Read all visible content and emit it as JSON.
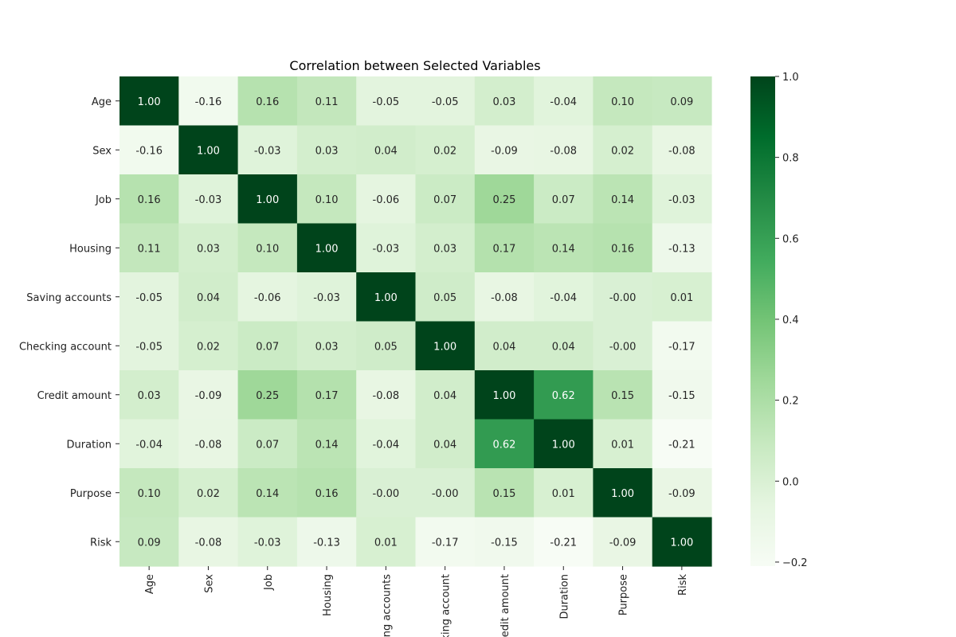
{
  "chart_data": {
    "type": "heatmap",
    "title": "Correlation between Selected Variables",
    "xlabel": "",
    "ylabel": "",
    "rows": [
      "Age",
      "Sex",
      "Job",
      "Housing",
      "Saving accounts",
      "Checking account",
      "Credit amount",
      "Duration",
      "Purpose",
      "Risk"
    ],
    "columns": [
      "Age",
      "Sex",
      "Job",
      "Housing",
      "Saving accounts",
      "Checking account",
      "Credit amount",
      "Duration",
      "Purpose",
      "Risk"
    ],
    "values": [
      [
        1.0,
        -0.16,
        0.16,
        0.11,
        -0.05,
        -0.05,
        0.03,
        -0.04,
        0.1,
        0.09
      ],
      [
        -0.16,
        1.0,
        -0.03,
        0.03,
        0.04,
        0.02,
        -0.09,
        -0.08,
        0.02,
        -0.08
      ],
      [
        0.16,
        -0.03,
        1.0,
        0.1,
        -0.06,
        0.07,
        0.25,
        0.07,
        0.14,
        -0.03
      ],
      [
        0.11,
        0.03,
        0.1,
        1.0,
        -0.03,
        0.03,
        0.17,
        0.14,
        0.16,
        -0.13
      ],
      [
        -0.05,
        0.04,
        -0.06,
        -0.03,
        1.0,
        0.05,
        -0.08,
        -0.04,
        -0.0,
        0.01
      ],
      [
        -0.05,
        0.02,
        0.07,
        0.03,
        0.05,
        1.0,
        0.04,
        0.04,
        -0.0,
        -0.17
      ],
      [
        0.03,
        -0.09,
        0.25,
        0.17,
        -0.08,
        0.04,
        1.0,
        0.62,
        0.15,
        -0.15
      ],
      [
        -0.04,
        -0.08,
        0.07,
        0.14,
        -0.04,
        0.04,
        0.62,
        1.0,
        0.01,
        -0.21
      ],
      [
        0.1,
        0.02,
        0.14,
        0.16,
        -0.0,
        -0.0,
        0.15,
        0.01,
        1.0,
        -0.09
      ],
      [
        0.09,
        -0.08,
        -0.03,
        -0.13,
        0.01,
        -0.17,
        -0.15,
        -0.21,
        -0.09,
        1.0
      ]
    ],
    "value_format": "2 decimals",
    "colormap": "Greens",
    "colormap_stops": [
      "#f7fcf5",
      "#e5f5e0",
      "#c7e9c0",
      "#a1d99b",
      "#74c476",
      "#41ab5d",
      "#238b45",
      "#006d2c",
      "#00441b"
    ],
    "colorbar": {
      "range": [
        -0.21,
        1.0
      ],
      "ticks": [
        1.0,
        0.8,
        0.6,
        0.4,
        0.2,
        0.0,
        -0.2
      ],
      "tick_labels": [
        "1.0",
        "0.8",
        "0.6",
        "0.4",
        "0.2",
        "0.0",
        "−0.2"
      ]
    },
    "grid": false,
    "legend": "colorbar right"
  }
}
